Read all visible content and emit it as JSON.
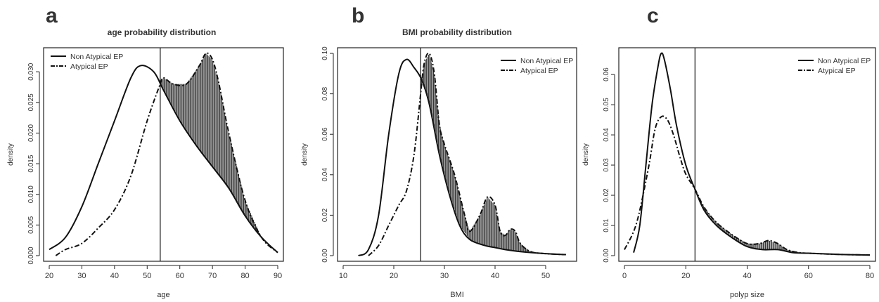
{
  "panels": [
    {
      "letter": "a",
      "title": "age probability distribution",
      "xlabel": "age",
      "ylabel": "density",
      "xlim": [
        20,
        90
      ],
      "ylim": [
        0,
        0.033
      ],
      "xticks": [
        20,
        30,
        40,
        50,
        60,
        70,
        80,
        90
      ],
      "yticks": [
        0.0,
        0.005,
        0.01,
        0.015,
        0.02,
        0.025,
        0.03
      ],
      "ytick_labels": [
        "0.000",
        "0.005",
        "0.010",
        "0.015",
        "0.020",
        "0.025",
        "0.030"
      ],
      "cutoff": 54,
      "legend_position": "top-left",
      "legend": [
        {
          "label": "Non Atypical EP",
          "style": "solid"
        },
        {
          "label": "Atypical EP",
          "style": "dash-dot"
        }
      ]
    },
    {
      "letter": "b",
      "title": "BMI probability distribution",
      "xlabel": "BMI",
      "ylabel": "density",
      "xlim": [
        10,
        55
      ],
      "ylim": [
        0,
        0.1
      ],
      "xticks": [
        10,
        20,
        30,
        40,
        50
      ],
      "yticks": [
        0.0,
        0.02,
        0.04,
        0.06,
        0.08,
        0.1
      ],
      "ytick_labels": [
        "0.00",
        "0.02",
        "0.04",
        "0.06",
        "0.08",
        "0.10"
      ],
      "cutoff": 25.3,
      "legend_position": "top-right",
      "legend": [
        {
          "label": "Non Atypical  EP",
          "style": "solid"
        },
        {
          "label": "Atypical  EP",
          "style": "dash-dot"
        }
      ]
    },
    {
      "letter": "c",
      "title": "",
      "xlabel": "polyp size",
      "ylabel": "density",
      "xlim": [
        0,
        80
      ],
      "ylim": [
        0,
        0.067
      ],
      "xticks": [
        0,
        20,
        40,
        60,
        80
      ],
      "yticks": [
        0.0,
        0.01,
        0.02,
        0.03,
        0.04,
        0.05,
        0.06
      ],
      "ytick_labels": [
        "0.00",
        "0.01",
        "0.02",
        "0.03",
        "0.04",
        "0.05",
        "0.06"
      ],
      "cutoff": 23,
      "legend_position": "top-right",
      "legend": [
        {
          "label": "Non Atypical  EP",
          "style": "solid"
        },
        {
          "label": "Atypical  EP",
          "style": "dash-dot"
        }
      ]
    }
  ],
  "chart_data": [
    {
      "type": "line",
      "title": "age probability distribution",
      "xlabel": "age",
      "ylabel": "density",
      "xlim": [
        20,
        90
      ],
      "ylim": [
        0,
        0.033
      ],
      "grid": false,
      "shaded_region": "area between curves right of cutoff (x > 54), vertical hatching",
      "series": [
        {
          "name": "Non Atypical EP",
          "style": "solid",
          "x": [
            20,
            25,
            30,
            35,
            40,
            45,
            48,
            52,
            55,
            60,
            65,
            70,
            75,
            80,
            85,
            90
          ],
          "y": [
            0.001,
            0.003,
            0.008,
            0.015,
            0.022,
            0.029,
            0.031,
            0.03,
            0.027,
            0.022,
            0.018,
            0.0145,
            0.011,
            0.0065,
            0.003,
            0.0005
          ]
        },
        {
          "name": "Atypical EP",
          "style": "dash-dot",
          "x": [
            22,
            25,
            30,
            35,
            40,
            45,
            50,
            54,
            55,
            58,
            62,
            66,
            68,
            70,
            72,
            75,
            80,
            85,
            90
          ],
          "y": [
            0.0,
            0.001,
            0.002,
            0.0045,
            0.0075,
            0.013,
            0.022,
            0.028,
            0.029,
            0.028,
            0.028,
            0.031,
            0.033,
            0.032,
            0.028,
            0.02,
            0.009,
            0.003,
            0.0005
          ]
        }
      ]
    },
    {
      "type": "line",
      "title": "BMI probability distribution",
      "xlabel": "BMI",
      "ylabel": "density",
      "xlim": [
        10,
        55
      ],
      "ylim": [
        0,
        0.1
      ],
      "grid": false,
      "shaded_region": "area between curves right of cutoff (x > 25.3), vertical hatching",
      "series": [
        {
          "name": "Non Atypical  EP",
          "style": "solid",
          "x": [
            13,
            15,
            17,
            19,
            21,
            22.5,
            24,
            25.5,
            27,
            29,
            31,
            33,
            35,
            38,
            40,
            42,
            45,
            50,
            54
          ],
          "y": [
            0.0,
            0.003,
            0.02,
            0.06,
            0.09,
            0.097,
            0.093,
            0.087,
            0.075,
            0.05,
            0.03,
            0.015,
            0.008,
            0.005,
            0.004,
            0.003,
            0.002,
            0.001,
            0.0005
          ]
        },
        {
          "name": "Atypical  EP",
          "style": "dash-dot",
          "x": [
            15,
            17,
            19,
            21,
            22.5,
            24,
            25.3,
            26,
            27,
            28,
            29,
            30,
            32,
            34,
            35,
            37,
            38.5,
            40,
            41,
            42,
            43,
            44,
            45,
            47,
            50,
            54
          ],
          "y": [
            0.0,
            0.005,
            0.015,
            0.025,
            0.032,
            0.05,
            0.08,
            0.095,
            0.1,
            0.09,
            0.065,
            0.055,
            0.04,
            0.02,
            0.012,
            0.02,
            0.029,
            0.025,
            0.012,
            0.01,
            0.013,
            0.012,
            0.006,
            0.002,
            0.001,
            0.0005
          ]
        }
      ]
    },
    {
      "type": "line",
      "title": "",
      "xlabel": "polyp size",
      "ylabel": "density",
      "xlim": [
        0,
        80
      ],
      "ylim": [
        0,
        0.067
      ],
      "grid": false,
      "shaded_region": "area between curves right of cutoff (x > 23), vertical hatching",
      "series": [
        {
          "name": "Non Atypical  EP",
          "style": "solid",
          "x": [
            3,
            5,
            7,
            9,
            11,
            12,
            13,
            15,
            17,
            20,
            23,
            26,
            30,
            35,
            40,
            45,
            50,
            55,
            60,
            70,
            80
          ],
          "y": [
            0.001,
            0.01,
            0.03,
            0.05,
            0.063,
            0.067,
            0.065,
            0.055,
            0.043,
            0.03,
            0.022,
            0.015,
            0.01,
            0.006,
            0.003,
            0.002,
            0.002,
            0.001,
            0.0008,
            0.0004,
            0.0002
          ]
        },
        {
          "name": "Atypical  EP",
          "style": "dash-dot",
          "x": [
            0,
            3,
            5,
            8,
            10,
            12,
            14,
            16,
            18,
            20,
            23,
            26,
            30,
            35,
            40,
            44,
            47,
            50,
            53,
            57,
            60,
            70,
            80
          ],
          "y": [
            0.002,
            0.008,
            0.015,
            0.03,
            0.042,
            0.046,
            0.045,
            0.04,
            0.033,
            0.027,
            0.022,
            0.016,
            0.011,
            0.007,
            0.004,
            0.004,
            0.005,
            0.004,
            0.002,
            0.001,
            0.0008,
            0.0004,
            0.0002
          ]
        }
      ]
    }
  ]
}
